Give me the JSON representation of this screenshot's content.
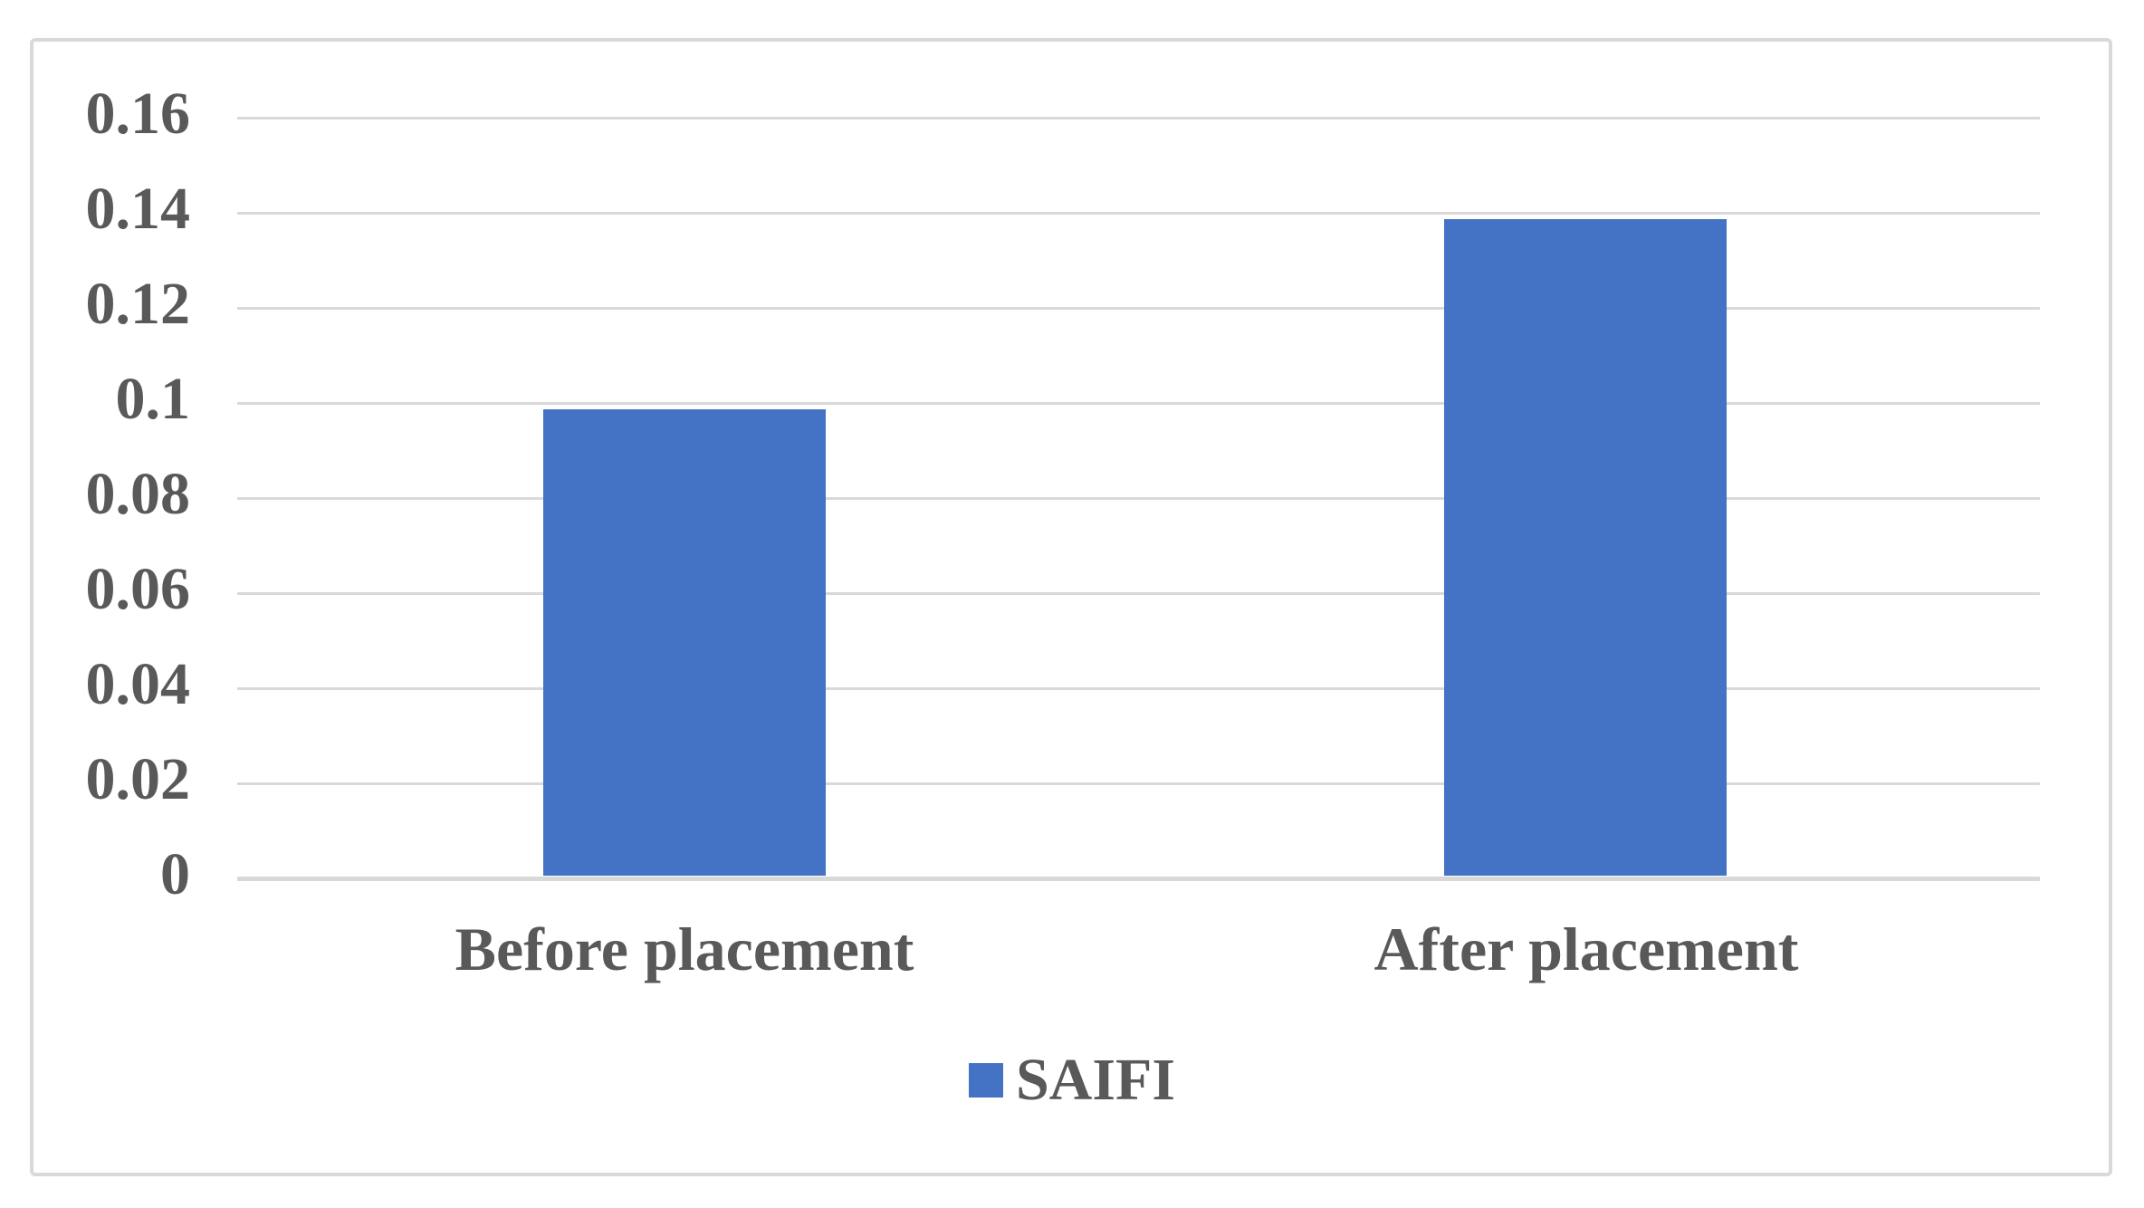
{
  "chart_data": {
    "type": "bar",
    "title": "",
    "categories": [
      "Before placement",
      "After placement"
    ],
    "series": [
      {
        "name": "SAIFI",
        "values": [
          0.098,
          0.138
        ]
      }
    ],
    "ylim": [
      0,
      0.16
    ],
    "ytick_step": 0.02,
    "ytick_labels": [
      "0",
      "0.02",
      "0.04",
      "0.06",
      "0.08",
      "0.1",
      "0.12",
      "0.14",
      "0.16"
    ],
    "grid": true,
    "legend_position": "bottom",
    "colors": {
      "bar": "#4472C4",
      "text": "#595959",
      "gridline": "#D9D9D9",
      "frame_border": "#D9D9D9",
      "background": "#FFFFFF"
    }
  },
  "legend": {
    "marker": "square-swatch",
    "label": "SAIFI"
  }
}
